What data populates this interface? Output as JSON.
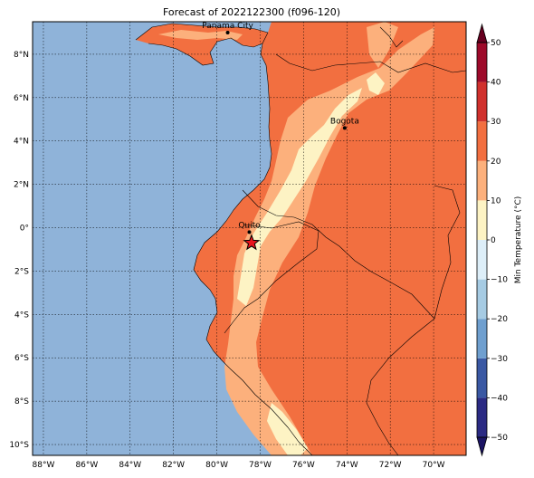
{
  "title": "Forecast of 2022122300 (f096-120)",
  "map": {
    "lon_range": [
      -88.5,
      -68.5
    ],
    "lat_range": [
      -10.5,
      9.5
    ],
    "lon_ticks": [
      {
        "value": -88,
        "label": "88°W"
      },
      {
        "value": -86,
        "label": "86°W"
      },
      {
        "value": -84,
        "label": "84°W"
      },
      {
        "value": -82,
        "label": "82°W"
      },
      {
        "value": -80,
        "label": "80°W"
      },
      {
        "value": -78,
        "label": "78°W"
      },
      {
        "value": -76,
        "label": "76°W"
      },
      {
        "value": -74,
        "label": "74°W"
      },
      {
        "value": -72,
        "label": "72°W"
      },
      {
        "value": -70,
        "label": "70°W"
      }
    ],
    "lat_ticks": [
      {
        "value": 8,
        "label": "8°N"
      },
      {
        "value": 6,
        "label": "6°N"
      },
      {
        "value": 4,
        "label": "4°N"
      },
      {
        "value": 2,
        "label": "2°N"
      },
      {
        "value": 0,
        "label": "0°"
      },
      {
        "value": -2,
        "label": "2°S"
      },
      {
        "value": -4,
        "label": "4°S"
      },
      {
        "value": -6,
        "label": "6°S"
      },
      {
        "value": -8,
        "label": "8°S"
      },
      {
        "value": -10,
        "label": "10°S"
      }
    ],
    "gridlines": true,
    "ocean_color": "#8fb3d9"
  },
  "cities": [
    {
      "name": "Panama City",
      "lon": -79.5,
      "lat": 9.0
    },
    {
      "name": "Bogota",
      "lon": -74.1,
      "lat": 4.6
    },
    {
      "name": "Quito",
      "lon": -78.5,
      "lat": -0.2
    }
  ],
  "marker": {
    "lon": -78.4,
    "lat": -0.7,
    "color": "#e8141e"
  },
  "colorbar": {
    "label": "Min Temperature (°C)",
    "ticks": [
      "50",
      "40",
      "30",
      "20",
      "10",
      "0",
      "−10",
      "−20",
      "−30",
      "−40",
      "−50"
    ],
    "levels": [
      {
        "low": -50,
        "high": -40,
        "color": "#2b2a83"
      },
      {
        "low": -40,
        "high": -30,
        "color": "#3a58a3"
      },
      {
        "low": -30,
        "high": -20,
        "color": "#6f9fcf"
      },
      {
        "low": -20,
        "high": -10,
        "color": "#a6cbe3"
      },
      {
        "low": -10,
        "high": 0,
        "color": "#ddeef8"
      },
      {
        "low": 0,
        "high": 10,
        "color": "#fdf3c4"
      },
      {
        "low": 10,
        "high": 20,
        "color": "#fcb07c"
      },
      {
        "low": 20,
        "high": 30,
        "color": "#f26f40"
      },
      {
        "low": 30,
        "high": 40,
        "color": "#d0312d"
      },
      {
        "low": 40,
        "high": 50,
        "color": "#9d0a2a"
      }
    ],
    "below_color": "#1b1464",
    "above_color": "#67001f"
  }
}
